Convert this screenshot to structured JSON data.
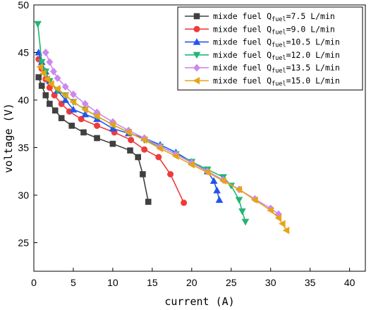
{
  "chart_data": {
    "type": "line",
    "xlabel": "current (A)",
    "ylabel": "voltage (V)",
    "xlim": [
      0,
      42
    ],
    "ylim": [
      22,
      50
    ],
    "xticks": [
      0,
      5,
      10,
      15,
      20,
      25,
      30,
      35,
      40
    ],
    "yticks": [
      25,
      30,
      35,
      40,
      45,
      50
    ],
    "legend_placement": "top-right",
    "grid": false,
    "series": [
      {
        "name": "mixde fuel Q_fuel=7.5 L/min",
        "label_pre": "mixde fuel Q",
        "label_sub": "fuel",
        "label_post": "=7.5 L/min",
        "color": "#404040",
        "marker": "square",
        "x": [
          0.6,
          1.0,
          1.5,
          2.0,
          2.7,
          3.5,
          4.8,
          6.3,
          8.0,
          10.0,
          12.2,
          13.2,
          13.8,
          14.5
        ],
        "y": [
          42.4,
          41.5,
          40.5,
          39.6,
          38.9,
          38.1,
          37.3,
          36.6,
          36.0,
          35.4,
          34.7,
          34.0,
          32.2,
          29.3
        ]
      },
      {
        "name": "mixde fuel Q_fuel=9.0 L/min",
        "label_pre": "mixde fuel Q",
        "label_sub": "fuel",
        "label_post": "=9.0 L/min",
        "color": "#ee3b3b",
        "marker": "circle",
        "x": [
          0.6,
          1.0,
          1.5,
          2.0,
          2.6,
          3.5,
          4.5,
          6.0,
          8.0,
          10.2,
          12.3,
          14.0,
          15.8,
          17.3,
          19.0
        ],
        "y": [
          44.3,
          43.3,
          42.2,
          41.3,
          40.5,
          39.6,
          38.8,
          38.0,
          37.3,
          36.6,
          35.8,
          34.8,
          34.0,
          32.2,
          29.2
        ]
      },
      {
        "name": "mixde fuel Q_fuel=10.5 L/min",
        "label_pre": "mixde fuel Q",
        "label_sub": "fuel",
        "label_post": "=10.5 L/min",
        "color": "#2255ee",
        "marker": "triangle-up",
        "x": [
          0.6,
          1.0,
          1.5,
          2.0,
          3.0,
          4.0,
          5.0,
          6.5,
          8.0,
          10.0,
          12.0,
          14.0,
          16.0,
          18.0,
          20.0,
          22.0,
          22.8,
          23.2,
          23.5
        ],
        "y": [
          45.0,
          44.0,
          43.0,
          42.0,
          41.0,
          40.0,
          39.0,
          38.5,
          38.0,
          37.0,
          36.5,
          36.0,
          35.3,
          34.5,
          33.5,
          32.5,
          31.5,
          30.5,
          29.5
        ]
      },
      {
        "name": "mixde fuel Q_fuel=12.0 L/min",
        "label_pre": "mixde fuel Q",
        "label_sub": "fuel",
        "label_post": "=12.0 L/min",
        "color": "#22b573",
        "marker": "triangle-down",
        "x": [
          0.5,
          1.0,
          1.5,
          2.0,
          3.0,
          4.0,
          5.0,
          6.5,
          8.0,
          10.0,
          12.0,
          14.0,
          16.0,
          18.0,
          20.0,
          22.0,
          24.0,
          25.0,
          26.0,
          26.4,
          26.8
        ],
        "y": [
          48.0,
          44.0,
          43.0,
          42.0,
          41.0,
          40.5,
          39.8,
          39.0,
          38.3,
          37.4,
          36.6,
          35.8,
          35.1,
          34.3,
          33.5,
          32.7,
          31.9,
          31.0,
          29.5,
          28.3,
          27.2
        ]
      },
      {
        "name": "mixde fuel Q_fuel=13.5 L/min",
        "label_pre": "mixde fuel Q",
        "label_sub": "fuel",
        "label_post": "=13.5 L/min",
        "color": "#cc88ee",
        "marker": "diamond",
        "x": [
          1.5,
          2.0,
          2.5,
          3.0,
          4.0,
          5.0,
          6.5,
          8.0,
          10.0,
          12.0,
          14.0,
          16.0,
          18.0,
          20.0,
          22.0,
          24.0,
          26.0,
          28.0,
          30.0,
          31.0
        ],
        "y": [
          45.0,
          44.0,
          43.0,
          42.3,
          41.4,
          40.6,
          39.6,
          38.7,
          37.7,
          36.8,
          36.0,
          35.1,
          34.3,
          33.4,
          32.5,
          31.6,
          30.6,
          29.6,
          28.6,
          28.0
        ]
      },
      {
        "name": "mixde fuel Q_fuel=15.0 L/min",
        "label_pre": "mixde fuel Q",
        "label_sub": "fuel",
        "label_post": "=15.0 L/min",
        "color": "#e8a317",
        "marker": "triangle-left",
        "x": [
          0.8,
          1.2,
          1.7,
          2.2,
          3.0,
          4.0,
          5.0,
          6.5,
          8.0,
          10.0,
          12.0,
          14.0,
          16.0,
          18.0,
          20.0,
          22.0,
          24.0,
          26.0,
          28.0,
          30.0,
          31.0,
          31.5,
          32.0
        ],
        "y": [
          43.5,
          42.8,
          42.2,
          41.7,
          41.2,
          40.5,
          39.8,
          39.0,
          38.3,
          37.4,
          36.6,
          35.8,
          34.9,
          34.1,
          33.2,
          32.4,
          31.5,
          30.6,
          29.5,
          28.4,
          27.6,
          27.0,
          26.3
        ]
      }
    ]
  }
}
